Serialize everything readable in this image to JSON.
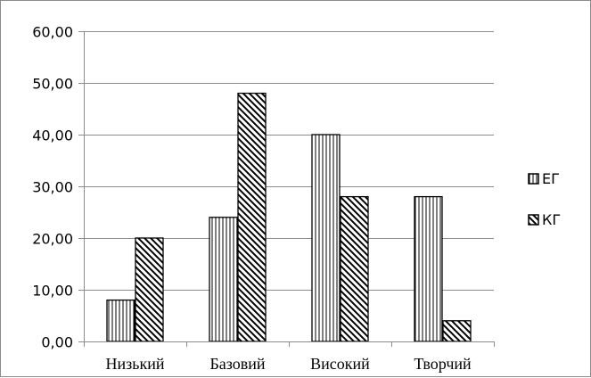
{
  "chart_data": {
    "type": "bar",
    "title": "",
    "xlabel": "",
    "ylabel": "",
    "categories": [
      "Низький",
      "Базовий",
      "Високий",
      "Творчий"
    ],
    "series": [
      {
        "name": "ЕГ",
        "values": [
          8.0,
          24.0,
          40.0,
          28.0
        ],
        "pattern": "vertical-lines"
      },
      {
        "name": "КГ",
        "values": [
          20.0,
          48.0,
          28.0,
          4.0
        ],
        "pattern": "diagonal-lines"
      }
    ],
    "ylim": [
      0,
      60
    ],
    "yticks": [
      "0,00",
      "10,00",
      "20,00",
      "30,00",
      "40,00",
      "50,00",
      "60,00"
    ],
    "grid": true,
    "legend_position": "right",
    "colors": {
      "bar_stroke": "#000000",
      "grid": "#8c8c8c",
      "axis": "#8c8c8c"
    }
  }
}
